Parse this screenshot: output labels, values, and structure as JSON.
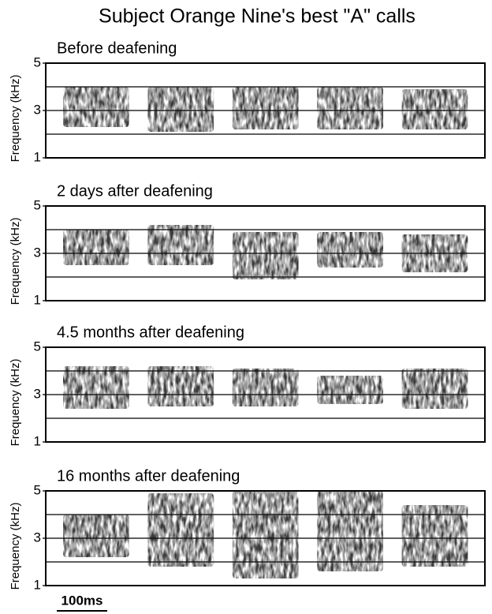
{
  "title": "Subject Orange Nine's best \"A\" calls",
  "scale_bar": "100ms",
  "chart_data": [
    {
      "type": "spectrogram",
      "title": "Before deafening",
      "ylabel": "Frequency (kHz)",
      "ylim": [
        1,
        5
      ],
      "yticks": [
        1,
        3,
        5
      ],
      "grid_lines": [
        2,
        3,
        4
      ],
      "color": "#111111",
      "calls": {
        "low": [
          2.3,
          2.1,
          2.2,
          2.2,
          2.2
        ],
        "high": [
          4.0,
          4.0,
          4.0,
          4.0,
          3.9
        ]
      }
    },
    {
      "type": "spectrogram",
      "title": "2 days after deafening",
      "ylabel": "Frequency (kHz)",
      "ylim": [
        1,
        5
      ],
      "yticks": [
        1,
        3,
        5
      ],
      "grid_lines": [
        2,
        3,
        4
      ],
      "color": "#111111",
      "calls": {
        "low": [
          2.5,
          2.5,
          1.9,
          2.4,
          2.2
        ],
        "high": [
          4.0,
          4.2,
          3.9,
          3.9,
          3.8
        ]
      }
    },
    {
      "type": "spectrogram",
      "title": "4.5 months after deafening",
      "ylabel": "Frequency (kHz)",
      "ylim": [
        1,
        5
      ],
      "yticks": [
        1,
        3,
        5
      ],
      "grid_lines": [
        2,
        3,
        4
      ],
      "color": "#111111",
      "calls": {
        "low": [
          2.4,
          2.5,
          2.5,
          2.6,
          2.4
        ],
        "high": [
          4.2,
          4.2,
          4.1,
          3.8,
          4.1
        ]
      }
    },
    {
      "type": "spectrogram",
      "title": "16 months after deafening",
      "ylabel": "Frequency (kHz)",
      "ylim": [
        1,
        5
      ],
      "yticks": [
        1,
        3,
        5
      ],
      "grid_lines": [
        2,
        3,
        4
      ],
      "color": "#111111",
      "calls": {
        "low": [
          2.2,
          1.8,
          1.3,
          1.6,
          1.8
        ],
        "high": [
          4.0,
          4.9,
          5.0,
          5.0,
          4.4
        ]
      }
    }
  ]
}
